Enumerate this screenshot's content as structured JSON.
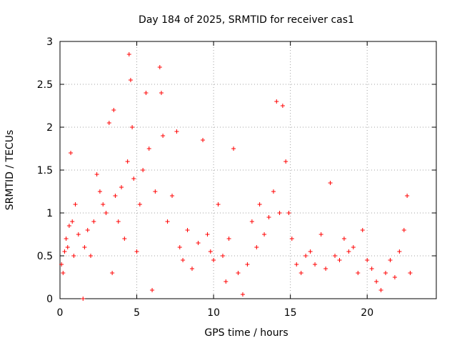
{
  "chart_data": {
    "type": "scatter",
    "title": "Day 184 of 2025, SRMTID for receiver cas1",
    "xlabel": "GPS time / hours",
    "ylabel": "SRMTID / TECUs",
    "xlim": [
      0,
      24.5
    ],
    "ylim": [
      0,
      3
    ],
    "xticks": [
      0,
      5,
      10,
      15,
      20
    ],
    "xtick_labels": [
      "0",
      "5",
      "10",
      "15",
      "20"
    ],
    "yticks": [
      0,
      0.5,
      1,
      1.5,
      2,
      2.5,
      3
    ],
    "ytick_labels": [
      "0",
      "0.5",
      "1",
      "1.5",
      "2",
      "2.5",
      "3"
    ],
    "grid": true,
    "marker": "+",
    "series": [
      {
        "name": "SRMTID",
        "color": "#ff0000",
        "points": [
          [
            0.1,
            0.4
          ],
          [
            0.2,
            0.3
          ],
          [
            0.3,
            0.55
          ],
          [
            0.4,
            0.7
          ],
          [
            0.5,
            0.6
          ],
          [
            0.6,
            0.85
          ],
          [
            0.7,
            1.7
          ],
          [
            0.8,
            0.9
          ],
          [
            0.9,
            0.5
          ],
          [
            1.0,
            1.1
          ],
          [
            1.2,
            0.75
          ],
          [
            1.5,
            0.0
          ],
          [
            1.6,
            0.6
          ],
          [
            1.8,
            0.8
          ],
          [
            2.0,
            0.5
          ],
          [
            2.2,
            0.9
          ],
          [
            2.4,
            1.45
          ],
          [
            2.6,
            1.25
          ],
          [
            2.8,
            1.1
          ],
          [
            3.0,
            1.0
          ],
          [
            3.2,
            2.05
          ],
          [
            3.4,
            0.3
          ],
          [
            3.5,
            2.2
          ],
          [
            3.6,
            1.2
          ],
          [
            3.8,
            0.9
          ],
          [
            4.0,
            1.3
          ],
          [
            4.2,
            0.7
          ],
          [
            4.4,
            1.6
          ],
          [
            4.5,
            2.85
          ],
          [
            4.6,
            2.55
          ],
          [
            4.7,
            2.0
          ],
          [
            4.8,
            1.4
          ],
          [
            5.0,
            0.55
          ],
          [
            5.2,
            1.1
          ],
          [
            5.4,
            1.5
          ],
          [
            5.6,
            2.4
          ],
          [
            5.8,
            1.75
          ],
          [
            6.0,
            0.1
          ],
          [
            6.2,
            1.25
          ],
          [
            6.5,
            2.7
          ],
          [
            6.6,
            2.4
          ],
          [
            6.7,
            1.9
          ],
          [
            7.0,
            0.9
          ],
          [
            7.3,
            1.2
          ],
          [
            7.6,
            1.95
          ],
          [
            7.8,
            0.6
          ],
          [
            8.0,
            0.45
          ],
          [
            8.3,
            0.8
          ],
          [
            8.6,
            0.35
          ],
          [
            9.0,
            0.65
          ],
          [
            9.3,
            1.85
          ],
          [
            9.6,
            0.75
          ],
          [
            9.8,
            0.55
          ],
          [
            10.0,
            0.45
          ],
          [
            10.3,
            1.1
          ],
          [
            10.6,
            0.5
          ],
          [
            10.8,
            0.2
          ],
          [
            11.0,
            0.7
          ],
          [
            11.3,
            1.75
          ],
          [
            11.6,
            0.3
          ],
          [
            11.9,
            0.05
          ],
          [
            12.2,
            0.4
          ],
          [
            12.5,
            0.9
          ],
          [
            12.8,
            0.6
          ],
          [
            13.0,
            1.1
          ],
          [
            13.3,
            0.75
          ],
          [
            13.6,
            0.95
          ],
          [
            13.9,
            1.25
          ],
          [
            14.1,
            2.3
          ],
          [
            14.3,
            1.0
          ],
          [
            14.5,
            2.25
          ],
          [
            14.7,
            1.6
          ],
          [
            14.9,
            1.0
          ],
          [
            15.1,
            0.7
          ],
          [
            15.4,
            0.4
          ],
          [
            15.7,
            0.3
          ],
          [
            16.0,
            0.5
          ],
          [
            16.3,
            0.55
          ],
          [
            16.6,
            0.4
          ],
          [
            17.0,
            0.75
          ],
          [
            17.3,
            0.35
          ],
          [
            17.6,
            1.35
          ],
          [
            17.9,
            0.5
          ],
          [
            18.2,
            0.45
          ],
          [
            18.5,
            0.7
          ],
          [
            18.8,
            0.55
          ],
          [
            19.1,
            0.6
          ],
          [
            19.4,
            0.3
          ],
          [
            19.7,
            0.8
          ],
          [
            20.0,
            0.45
          ],
          [
            20.3,
            0.35
          ],
          [
            20.6,
            0.2
          ],
          [
            20.9,
            0.1
          ],
          [
            21.2,
            0.3
          ],
          [
            21.5,
            0.45
          ],
          [
            21.8,
            0.25
          ],
          [
            22.1,
            0.55
          ],
          [
            22.4,
            0.8
          ],
          [
            22.6,
            1.2
          ],
          [
            22.8,
            0.3
          ]
        ]
      }
    ]
  }
}
